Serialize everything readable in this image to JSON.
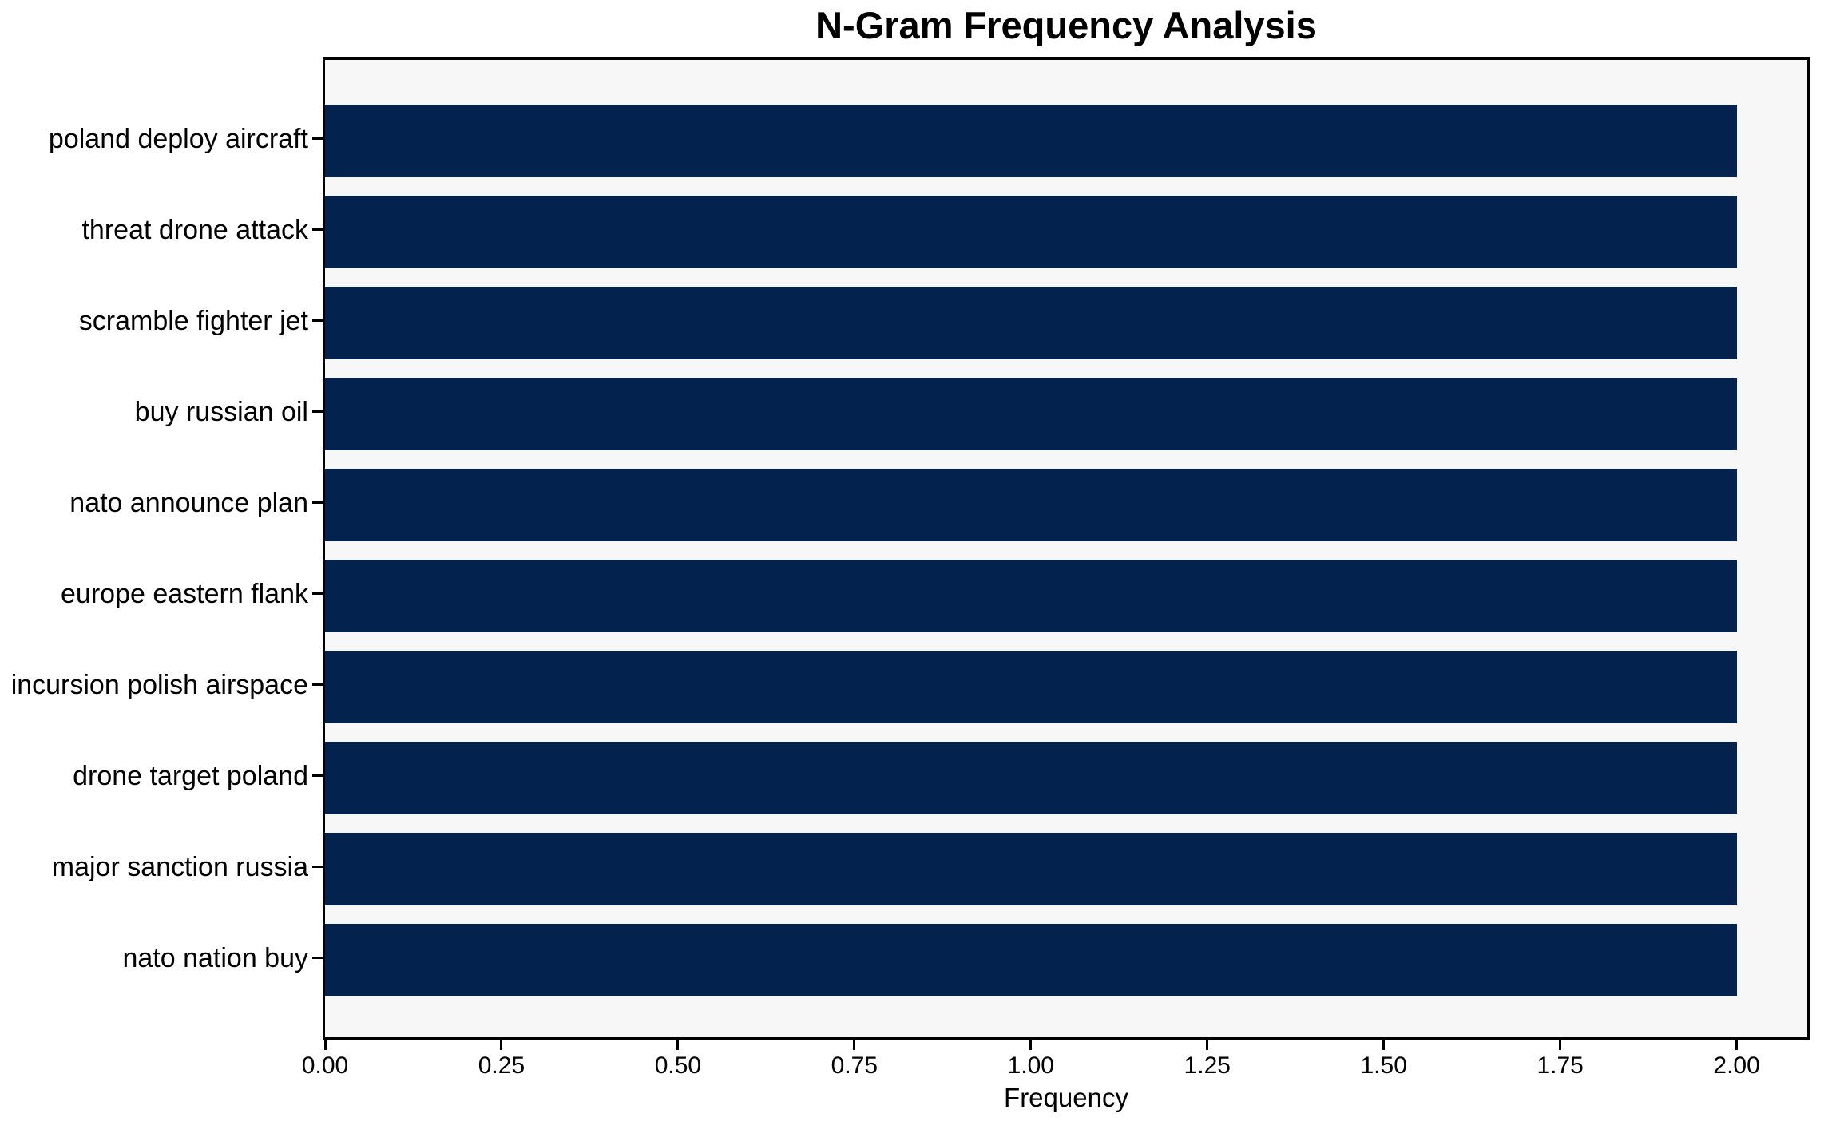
{
  "chart_data": {
    "type": "bar",
    "orientation": "horizontal",
    "title": "N-Gram Frequency Analysis",
    "xlabel": "Frequency",
    "ylabel": "",
    "categories": [
      "poland deploy aircraft",
      "threat drone attack",
      "scramble fighter jet",
      "buy russian oil",
      "nato announce plan",
      "europe eastern flank",
      "incursion polish airspace",
      "drone target poland",
      "major sanction russia",
      "nato nation buy"
    ],
    "values": [
      2,
      2,
      2,
      2,
      2,
      2,
      2,
      2,
      2,
      2
    ],
    "xlim": [
      0,
      2.1
    ],
    "xticks": [
      0,
      0.25,
      0.5,
      0.75,
      1.0,
      1.25,
      1.5,
      1.75,
      2.0
    ],
    "xtick_labels": [
      "0.00",
      "0.25",
      "0.50",
      "0.75",
      "1.00",
      "1.25",
      "1.50",
      "1.75",
      "2.00"
    ],
    "grid": false,
    "legend": null,
    "bar_color": "#03234e",
    "plot_background": "#f7f7f7",
    "spine_color": "#000000"
  }
}
